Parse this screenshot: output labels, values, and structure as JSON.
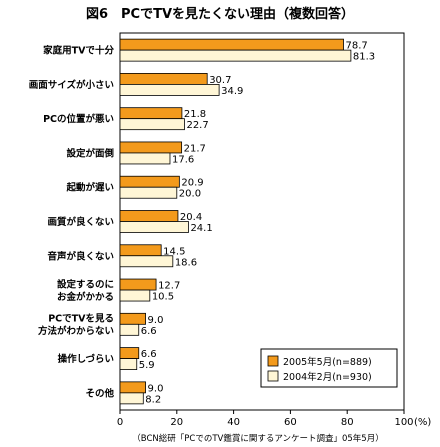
{
  "chart_data": {
    "type": "bar",
    "orientation": "horizontal",
    "title": "図6　PCでTVを見たくない理由（複数回答）",
    "categories": [
      [
        "家庭用TVで十分"
      ],
      [
        "画面サイズが小さい"
      ],
      [
        "PCの位置が悪い"
      ],
      [
        "設定が面倒"
      ],
      [
        "起動が遅い"
      ],
      [
        "画質が良くない"
      ],
      [
        "音声が良くない"
      ],
      [
        "設定するのに",
        "お金がかかる"
      ],
      [
        "PCでTVを見る",
        "方法がわからない"
      ],
      [
        "操作しづらい"
      ],
      [
        "その他"
      ]
    ],
    "series": [
      {
        "name": "2005年5月(n=889)",
        "color": "#f39a1c",
        "values": [
          78.7,
          30.7,
          21.8,
          21.7,
          20.9,
          20.4,
          14.5,
          12.7,
          9.0,
          6.6,
          9.0
        ],
        "labels": [
          "78.7",
          "30.7",
          "21.8",
          "21.7",
          "20.9",
          "20.4",
          "14.5",
          "12.7",
          "9.0",
          "6.6",
          "9.0"
        ]
      },
      {
        "name": "2004年2月(n=930)",
        "color": "#fff6d6",
        "values": [
          81.3,
          34.9,
          22.7,
          17.6,
          20.0,
          24.1,
          18.6,
          10.5,
          6.6,
          5.9,
          8.2
        ],
        "labels": [
          "81.3",
          "34.9",
          "22.7",
          "17.6",
          "20.0",
          "24.1",
          "18.6",
          "10.5",
          "6.6",
          "5.9",
          "8.2"
        ]
      }
    ],
    "xlim": [
      0,
      100
    ],
    "xticks": [
      "0",
      "20",
      "40",
      "60",
      "80",
      "100"
    ],
    "xunit": "(%)",
    "legend_position": "bottom-right",
    "source": "（BCN総研「PCでのTV鑑賞に関するアンケート調査」05年5月）",
    "grid": false
  }
}
